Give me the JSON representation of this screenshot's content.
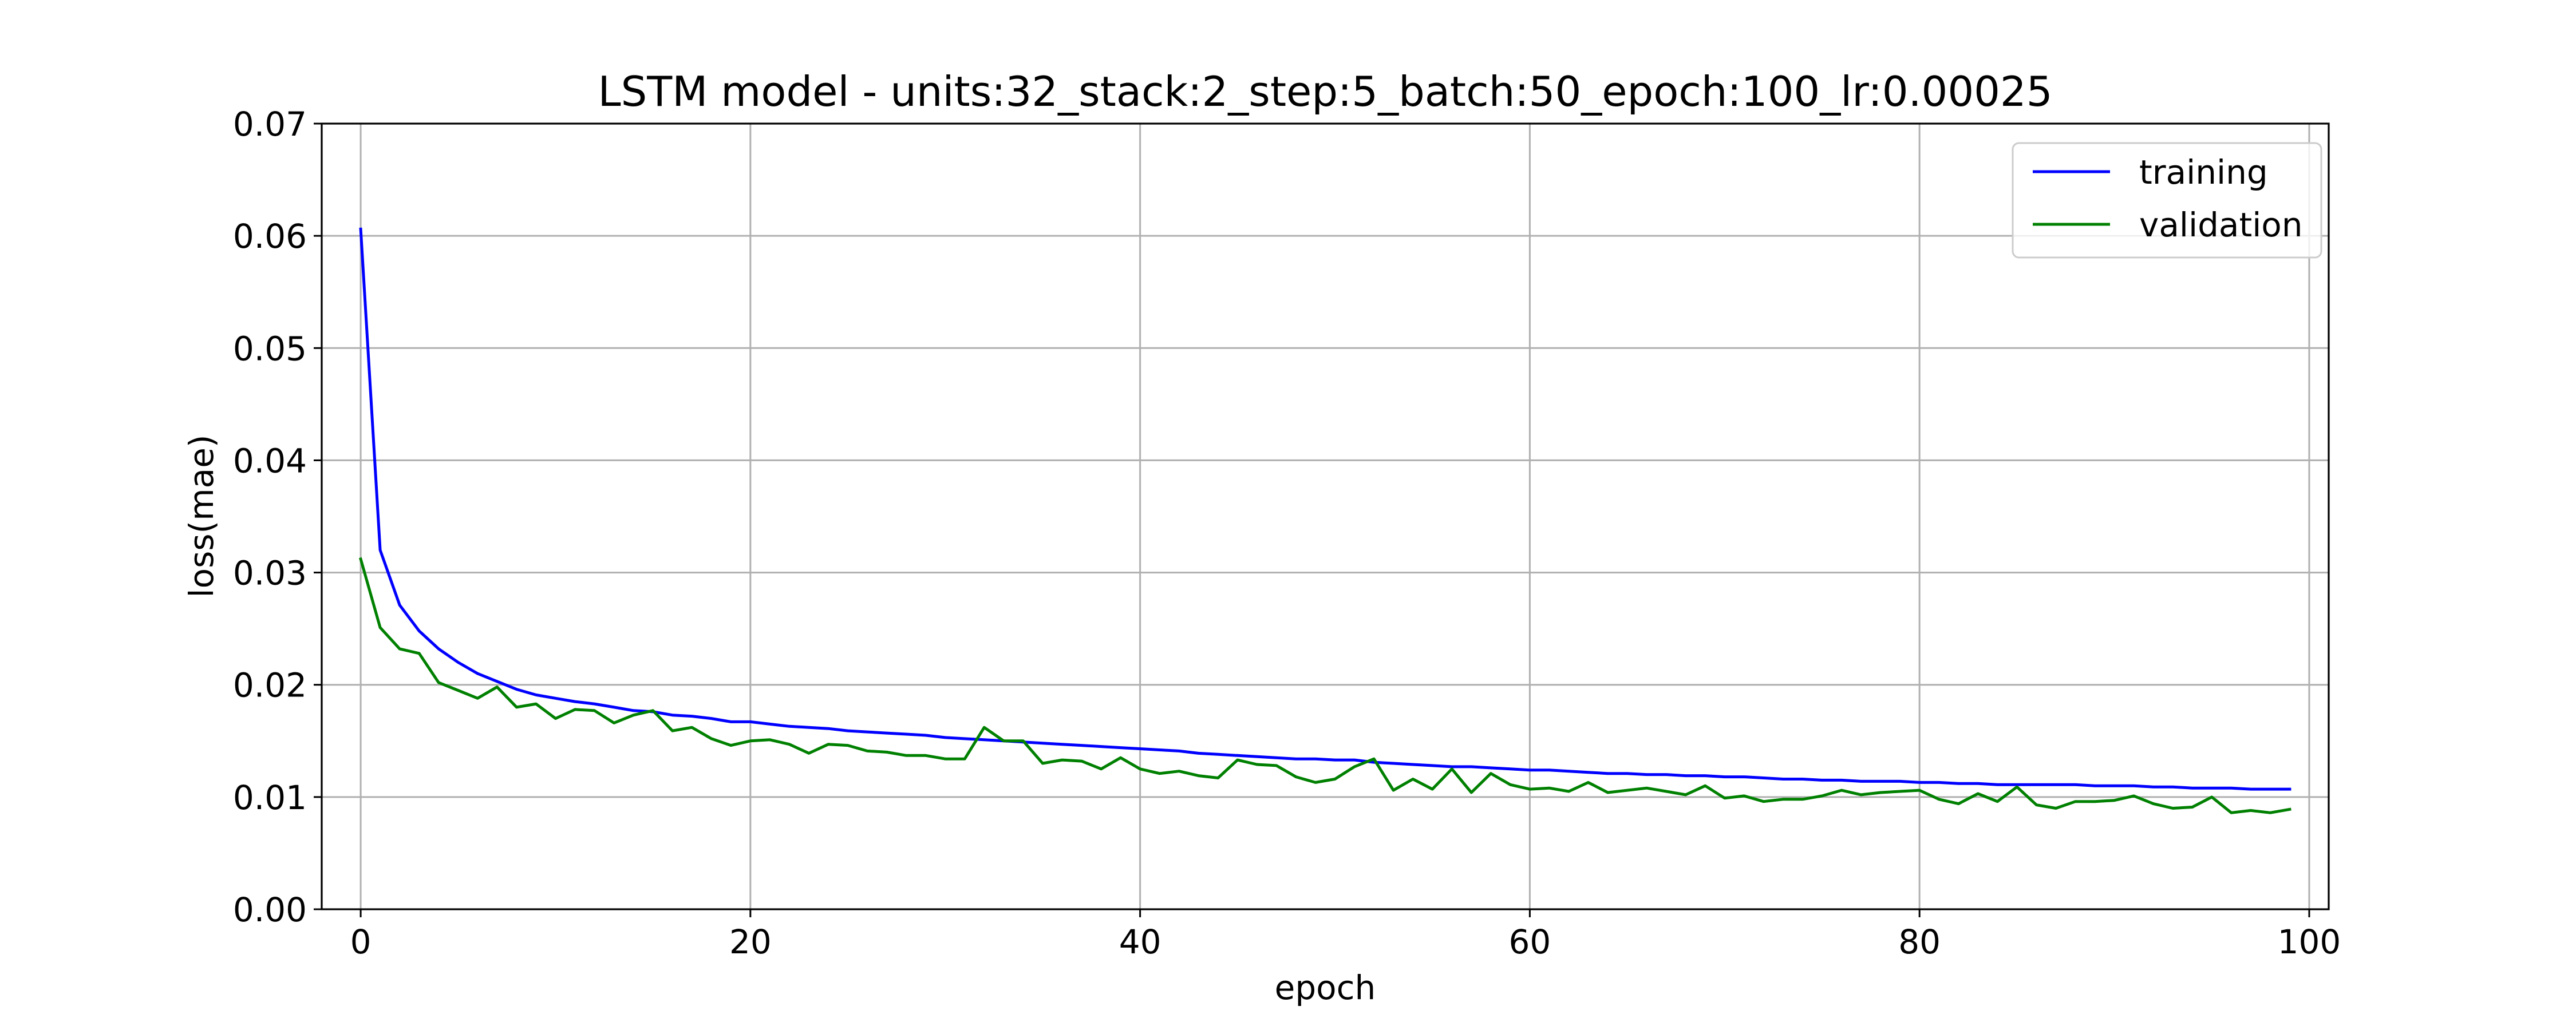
{
  "chart_data": {
    "type": "line",
    "title": "LSTM model - units:32_stack:2_step:5_batch:50_epoch:100_lr:0.00025",
    "xlabel": "epoch",
    "ylabel": "loss(mae)",
    "xlim": [
      -2,
      101
    ],
    "ylim": [
      0,
      0.07
    ],
    "xticks": [
      0,
      20,
      40,
      60,
      80,
      100
    ],
    "yticks": [
      0.0,
      0.01,
      0.02,
      0.03,
      0.04,
      0.05,
      0.06,
      0.07
    ],
    "xtick_labels": [
      "0",
      "20",
      "40",
      "60",
      "80",
      "100"
    ],
    "ytick_labels": [
      "0.00",
      "0.01",
      "0.02",
      "0.03",
      "0.04",
      "0.05",
      "0.06",
      "0.07"
    ],
    "grid": true,
    "legend_position": "top-right",
    "x": [
      0,
      1,
      2,
      3,
      4,
      5,
      6,
      7,
      8,
      9,
      10,
      11,
      12,
      13,
      14,
      15,
      16,
      17,
      18,
      19,
      20,
      21,
      22,
      23,
      24,
      25,
      26,
      27,
      28,
      29,
      30,
      31,
      32,
      33,
      34,
      35,
      36,
      37,
      38,
      39,
      40,
      41,
      42,
      43,
      44,
      45,
      46,
      47,
      48,
      49,
      50,
      51,
      52,
      53,
      54,
      55,
      56,
      57,
      58,
      59,
      60,
      61,
      62,
      63,
      64,
      65,
      66,
      67,
      68,
      69,
      70,
      71,
      72,
      73,
      74,
      75,
      76,
      77,
      78,
      79,
      80,
      81,
      82,
      83,
      84,
      85,
      86,
      87,
      88,
      89,
      90,
      91,
      92,
      93,
      94,
      95,
      96,
      97,
      98,
      99
    ],
    "series": [
      {
        "name": "training",
        "color": "#0000ff",
        "values": [
          0.0606,
          0.032,
          0.0271,
          0.0248,
          0.0232,
          0.022,
          0.021,
          0.0203,
          0.0196,
          0.0191,
          0.0188,
          0.0185,
          0.0183,
          0.018,
          0.0177,
          0.0176,
          0.0173,
          0.0172,
          0.017,
          0.0167,
          0.0167,
          0.0165,
          0.0163,
          0.0162,
          0.0161,
          0.0159,
          0.0158,
          0.0157,
          0.0156,
          0.0155,
          0.0153,
          0.0152,
          0.0151,
          0.015,
          0.0149,
          0.0148,
          0.0147,
          0.0146,
          0.0145,
          0.0144,
          0.0143,
          0.0142,
          0.0141,
          0.0139,
          0.0138,
          0.0137,
          0.0136,
          0.0135,
          0.0134,
          0.0134,
          0.0133,
          0.0133,
          0.0131,
          0.013,
          0.0129,
          0.0128,
          0.0127,
          0.0127,
          0.0126,
          0.0125,
          0.0124,
          0.0124,
          0.0123,
          0.0122,
          0.0121,
          0.0121,
          0.012,
          0.012,
          0.0119,
          0.0119,
          0.0118,
          0.0118,
          0.0117,
          0.0116,
          0.0116,
          0.0115,
          0.0115,
          0.0114,
          0.0114,
          0.0114,
          0.0113,
          0.0113,
          0.0112,
          0.0112,
          0.0111,
          0.0111,
          0.0111,
          0.0111,
          0.0111,
          0.011,
          0.011,
          0.011,
          0.0109,
          0.0109,
          0.0108,
          0.0108,
          0.0108,
          0.0107,
          0.0107,
          0.0107
        ]
      },
      {
        "name": "validation",
        "color": "#008000",
        "values": [
          0.0312,
          0.0251,
          0.0232,
          0.0228,
          0.0202,
          0.0195,
          0.0188,
          0.0198,
          0.018,
          0.0183,
          0.017,
          0.0178,
          0.0177,
          0.0166,
          0.0173,
          0.0177,
          0.0159,
          0.0162,
          0.0152,
          0.0146,
          0.015,
          0.0151,
          0.0147,
          0.0139,
          0.0147,
          0.0146,
          0.0141,
          0.014,
          0.0137,
          0.0137,
          0.0134,
          0.0134,
          0.0162,
          0.015,
          0.015,
          0.013,
          0.0133,
          0.0132,
          0.0125,
          0.0135,
          0.0125,
          0.0121,
          0.0123,
          0.0119,
          0.0117,
          0.0133,
          0.0129,
          0.0128,
          0.0118,
          0.0113,
          0.0116,
          0.0127,
          0.0134,
          0.0106,
          0.0116,
          0.0107,
          0.0125,
          0.0104,
          0.0121,
          0.0111,
          0.0107,
          0.0108,
          0.0105,
          0.0113,
          0.0104,
          0.0106,
          0.0108,
          0.0105,
          0.0102,
          0.011,
          0.0099,
          0.0101,
          0.0096,
          0.0098,
          0.0098,
          0.0101,
          0.0106,
          0.0102,
          0.0104,
          0.0105,
          0.0106,
          0.0098,
          0.0094,
          0.0103,
          0.0096,
          0.0109,
          0.0093,
          0.009,
          0.0096,
          0.0096,
          0.0097,
          0.0101,
          0.0094,
          0.009,
          0.0091,
          0.01,
          0.0086,
          0.0088,
          0.0086,
          0.0089
        ]
      }
    ]
  }
}
